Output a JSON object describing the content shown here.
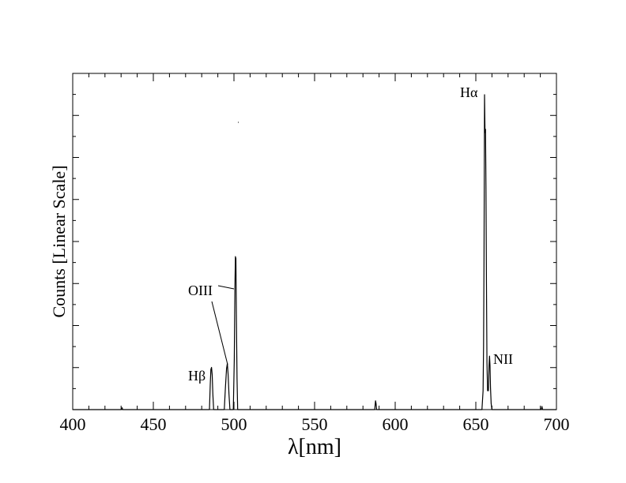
{
  "chart_data": {
    "type": "line",
    "title": "",
    "xlabel": "λ[nm]",
    "ylabel": "Counts [Linear Scale]",
    "xlim": [
      400,
      700
    ],
    "ylim": [
      0,
      1
    ],
    "y_scale": "linear",
    "y_tick_labels_shown": false,
    "grid": false,
    "legend": "none",
    "x_ticks": [
      400,
      450,
      500,
      550,
      600,
      650,
      700
    ],
    "x_tick_labels": [
      "400",
      "450",
      "500",
      "550",
      "600",
      "650",
      "700"
    ],
    "line_color": "#000000",
    "series": [
      {
        "x": [
          400,
          430,
          430.6,
          431,
          484.8,
          485.3,
          485.7,
          486.1,
          486.5,
          486.9,
          487.4,
          494,
          494.7,
          495.4,
          495.9,
          496.4,
          496.9,
          497.5,
          499.6,
          500.2,
          500.6,
          500.9,
          501.2,
          501.5,
          501.9,
          502.3,
          587.3,
          587.8,
          588.1,
          588.5,
          653.8,
          654.5,
          654.8,
          655.1,
          655.4,
          655.7,
          656.0,
          656.3,
          656.6,
          656.9,
          657.3,
          657.8,
          658.2,
          658.5,
          658.8,
          659.1,
          659.5,
          660,
          690.5,
          691,
          691.4,
          700
        ],
        "y": [
          0,
          0,
          0.006,
          0,
          0,
          0.08,
          0.128,
          0.134,
          0.11,
          0.05,
          0,
          0,
          0.07,
          0.13,
          0.146,
          0.11,
          0.05,
          0,
          0,
          0.16,
          0.39,
          0.486,
          0.48,
          0.3,
          0.1,
          0,
          0,
          0.028,
          0.02,
          0,
          0,
          0.06,
          0.2,
          0.5,
          1.0,
          0.88,
          0.89,
          0.7,
          0.4,
          0.15,
          0.06,
          0.06,
          0.14,
          0.17,
          0.14,
          0.07,
          0.02,
          0,
          0,
          0.01,
          0,
          0
        ]
      }
    ],
    "annotations": [
      {
        "text": "Hα",
        "x": 656.3,
        "y": 1.0
      },
      {
        "text": "NII",
        "x": 658.5,
        "y": 0.17
      },
      {
        "text": "OIII",
        "x": 500.7,
        "y": 0.39
      },
      {
        "text": "OIII",
        "x": 495.9,
        "y": 0.146
      },
      {
        "text": "Hβ",
        "x": 486.1,
        "y": 0.134
      }
    ]
  }
}
